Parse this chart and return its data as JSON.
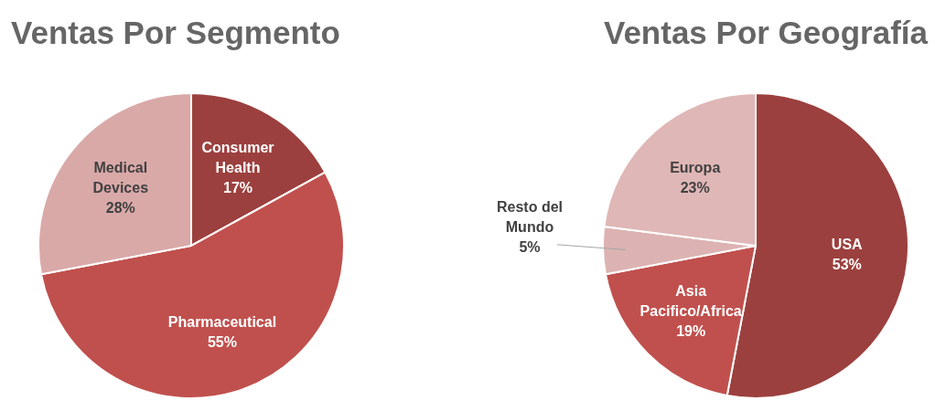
{
  "chart_data": [
    {
      "type": "pie",
      "title": "Ventas Por Segmento",
      "categories": [
        "Consumer Health",
        "Pharmaceutical",
        "Medical Devices"
      ],
      "values": [
        17,
        55,
        28
      ],
      "colors": [
        "#9b403e",
        "#c0504d",
        "#d9a9a8"
      ],
      "value_labels": [
        "17%",
        "55%",
        "28%"
      ]
    },
    {
      "type": "pie",
      "title": "Ventas Por Geografía",
      "categories": [
        "USA",
        "Asia Pacifico/Africa",
        "Resto del Mundo",
        "Europa"
      ],
      "values": [
        53,
        19,
        5,
        23
      ],
      "colors": [
        "#9b403e",
        "#c0504d",
        "#dcb3b2",
        "#dfb7b6"
      ],
      "value_labels": [
        "53%",
        "19%",
        "5%",
        "23%"
      ]
    }
  ]
}
